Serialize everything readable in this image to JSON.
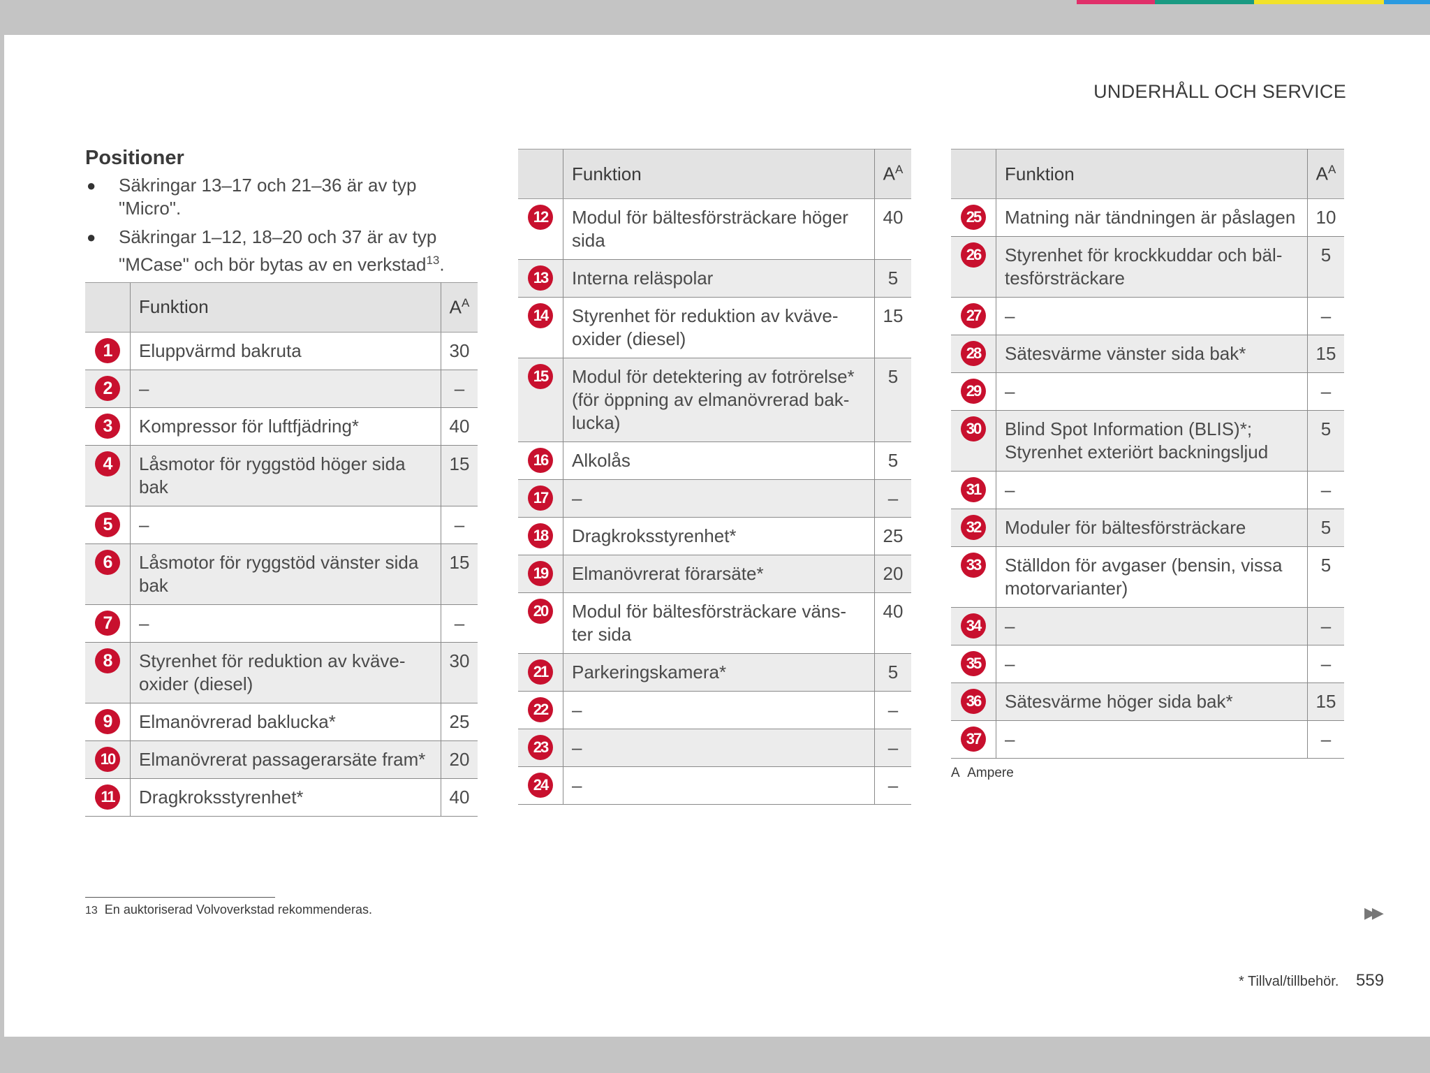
{
  "header": {
    "section_title": "UNDERHÅLL OCH SERVICE"
  },
  "colors": {
    "badge": "#c8102e",
    "row_alt": "#ececec",
    "header_bg": "#e3e3e3"
  },
  "intro": {
    "title": "Positioner",
    "bullet_1": "Säkringar 13–17 och 21–36 är av typ \"Micro\".",
    "bullet_2": "Säkringar 1–12, 18–20  och 37 är av typ \"MCase\" och bör bytas av en verkstad",
    "bullet_2_ref": "13",
    "bullet_2_end": "."
  },
  "table_headers": {
    "function": "Funktion",
    "amp": "A",
    "amp_ref": "A"
  },
  "table1": [
    {
      "n": "1",
      "f": "Eluppvärmd bakruta",
      "a": "30"
    },
    {
      "n": "2",
      "f": "–",
      "a": "–"
    },
    {
      "n": "3",
      "f": "Kompressor för luftfjädring*",
      "a": "40"
    },
    {
      "n": "4",
      "f": "Låsmotor för ryggstöd höger sida bak",
      "a": "15"
    },
    {
      "n": "5",
      "f": "–",
      "a": "–"
    },
    {
      "n": "6",
      "f": "Låsmotor för ryggstöd vänster sida bak",
      "a": "15"
    },
    {
      "n": "7",
      "f": "–",
      "a": "–"
    },
    {
      "n": "8",
      "f": "Styrenhet för reduktion av kväve-oxider (diesel)",
      "a": "30"
    },
    {
      "n": "9",
      "f": "Elmanövrerad baklucka*",
      "a": "25"
    },
    {
      "n": "10",
      "f": "Elmanövrerat passagerarsäte fram*",
      "a": "20"
    },
    {
      "n": "11",
      "f": "Dragkroksstyrenhet*",
      "a": "40"
    }
  ],
  "table2": [
    {
      "n": "12",
      "f": "Modul för bältesförsträckare höger sida",
      "a": "40"
    },
    {
      "n": "13",
      "f": "Interna reläspolar",
      "a": "5"
    },
    {
      "n": "14",
      "f": "Styrenhet för reduktion av kväve-oxider (diesel)",
      "a": "15"
    },
    {
      "n": "15",
      "f": "Modul för detektering av fotrörelse* (för öppning av elmanövrerad bak-lucka)",
      "a": "5"
    },
    {
      "n": "16",
      "f": "Alkolås",
      "a": "5"
    },
    {
      "n": "17",
      "f": "–",
      "a": "–"
    },
    {
      "n": "18",
      "f": "Dragkroksstyrenhet*",
      "a": "25"
    },
    {
      "n": "19",
      "f": "Elmanövrerat förarsäte*",
      "a": "20"
    },
    {
      "n": "20",
      "f": "Modul för bältesförsträckare väns-ter sida",
      "a": "40"
    },
    {
      "n": "21",
      "f": "Parkeringskamera*",
      "a": "5"
    },
    {
      "n": "22",
      "f": "–",
      "a": "–"
    },
    {
      "n": "23",
      "f": "–",
      "a": "–"
    },
    {
      "n": "24",
      "f": "–",
      "a": "–"
    }
  ],
  "table3": [
    {
      "n": "25",
      "f": "Matning när tändningen är påslagen",
      "a": "10"
    },
    {
      "n": "26",
      "f": "Styrenhet för krockkuddar och bäl-tesförsträckare",
      "a": "5"
    },
    {
      "n": "27",
      "f": "–",
      "a": "–"
    },
    {
      "n": "28",
      "f": "Sätesvärme vänster sida bak*",
      "a": "15"
    },
    {
      "n": "29",
      "f": "–",
      "a": "–"
    },
    {
      "n": "30",
      "f": "Blind Spot Information (BLIS)*; Styrenhet exteriört backningsljud",
      "a": "5"
    },
    {
      "n": "31",
      "f": "–",
      "a": "–"
    },
    {
      "n": "32",
      "f": "Moduler för bältesförsträckare",
      "a": "5"
    },
    {
      "n": "33",
      "f": "Ställdon för avgaser (bensin, vissa motorvarianter)",
      "a": "5"
    },
    {
      "n": "34",
      "f": "–",
      "a": "–"
    },
    {
      "n": "35",
      "f": "–",
      "a": "–"
    },
    {
      "n": "36",
      "f": "Sätesvärme höger sida bak*",
      "a": "15"
    },
    {
      "n": "37",
      "f": "–",
      "a": "–"
    }
  ],
  "table_note": {
    "marker": "A",
    "text": "Ampere"
  },
  "footnote": {
    "number": "13",
    "text": "En auktoriserad Volvoverkstad rekommenderas."
  },
  "footer": {
    "note": "* Tillval/tillbehör.",
    "page": "559",
    "next_icon": "double-arrow-right-icon"
  }
}
